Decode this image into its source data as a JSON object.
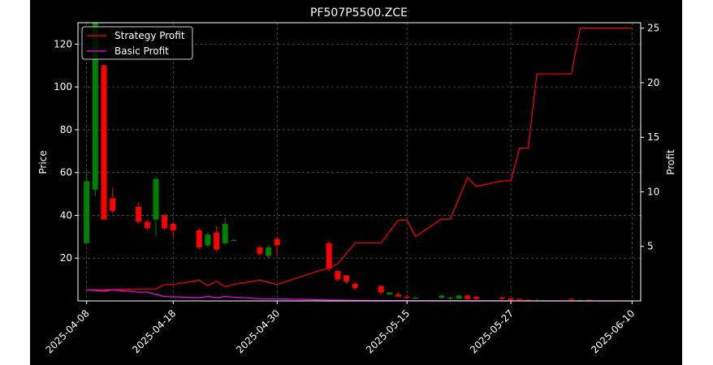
{
  "chart_data": {
    "type": "candlestick",
    "title": "PF507P5500.ZCE",
    "ylabel_left": "Price",
    "ylabel_right": "Profit",
    "xlim": [
      "2025-04-07",
      "2025-06-11"
    ],
    "ylim_left": [
      0,
      130
    ],
    "ylim_right": [
      0,
      25.5
    ],
    "yticks_left": [
      20,
      40,
      60,
      80,
      100,
      120
    ],
    "yticks_right": [
      5,
      10,
      15,
      20,
      25
    ],
    "xticks": [
      "2025-04-08",
      "2025-04-18",
      "2025-04-30",
      "2025-05-15",
      "2025-05-27",
      "2025-06-10"
    ],
    "grid": true,
    "legend_position": "top-left",
    "colors": {
      "background": "#000000",
      "up": "#008000",
      "down": "#ff0000",
      "strategy": "#ff0000",
      "basic": "#ff00ff",
      "grid": "#555555"
    },
    "candles": [
      {
        "date": "2025-04-08",
        "open": 27,
        "close": 56,
        "high": 61,
        "low": 27
      },
      {
        "date": "2025-04-09",
        "open": 52,
        "close": 130,
        "high": 130,
        "low": 49
      },
      {
        "date": "2025-04-10",
        "open": 110,
        "close": 38,
        "high": 110,
        "low": 38
      },
      {
        "date": "2025-04-11",
        "open": 48,
        "close": 42,
        "high": 53,
        "low": 41
      },
      {
        "date": "2025-04-14",
        "open": 44,
        "close": 37,
        "high": 46,
        "low": 36
      },
      {
        "date": "2025-04-15",
        "open": 37,
        "close": 34,
        "high": 38,
        "low": 33
      },
      {
        "date": "2025-04-16",
        "open": 38,
        "close": 57,
        "high": 58,
        "low": 30
      },
      {
        "date": "2025-04-17",
        "open": 40,
        "close": 34,
        "high": 41,
        "low": 33
      },
      {
        "date": "2025-04-18",
        "open": 36,
        "close": 33,
        "high": 37,
        "low": 30
      },
      {
        "date": "2025-04-21",
        "open": 33,
        "close": 25,
        "high": 34,
        "low": 24
      },
      {
        "date": "2025-04-22",
        "open": 26,
        "close": 31,
        "high": 32,
        "low": 25
      },
      {
        "date": "2025-04-23",
        "open": 32,
        "close": 24,
        "high": 35,
        "low": 23
      },
      {
        "date": "2025-04-24",
        "open": 27,
        "close": 36,
        "high": 39,
        "low": 26
      },
      {
        "date": "2025-04-25",
        "open": 28.5,
        "close": 28.5,
        "high": 29,
        "low": 28
      },
      {
        "date": "2025-04-28",
        "open": 25,
        "close": 22,
        "high": 26,
        "low": 21
      },
      {
        "date": "2025-04-29",
        "open": 21,
        "close": 25,
        "high": 26,
        "low": 20
      },
      {
        "date": "2025-04-30",
        "open": 29,
        "close": 26,
        "high": 30,
        "low": 21
      },
      {
        "date": "2025-05-06",
        "open": 27,
        "close": 15,
        "high": 28,
        "low": 14
      },
      {
        "date": "2025-05-07",
        "open": 14,
        "close": 10,
        "high": 14,
        "low": 9
      },
      {
        "date": "2025-05-08",
        "open": 12,
        "close": 9,
        "high": 12,
        "low": 8
      },
      {
        "date": "2025-05-09",
        "open": 8,
        "close": 6,
        "high": 9,
        "low": 5
      },
      {
        "date": "2025-05-12",
        "open": 7,
        "close": 4,
        "high": 7,
        "low": 3
      },
      {
        "date": "2025-05-13",
        "open": 3,
        "close": 4,
        "high": 4,
        "low": 3
      },
      {
        "date": "2025-05-14",
        "open": 3,
        "close": 2,
        "high": 4,
        "low": 2
      },
      {
        "date": "2025-05-15",
        "open": 2,
        "close": 1.5,
        "high": 3,
        "low": 1
      },
      {
        "date": "2025-05-16",
        "open": 1,
        "close": 1.5,
        "high": 2,
        "low": 1
      },
      {
        "date": "2025-05-19",
        "open": 1.5,
        "close": 2.5,
        "high": 3,
        "low": 1
      },
      {
        "date": "2025-05-20",
        "open": 1,
        "close": 1.5,
        "high": 2,
        "low": 0.5
      },
      {
        "date": "2025-05-21",
        "open": 1,
        "close": 2.5,
        "high": 3,
        "low": 1
      },
      {
        "date": "2025-05-22",
        "open": 2.5,
        "close": 1,
        "high": 3,
        "low": 0.5
      },
      {
        "date": "2025-05-23",
        "open": 2,
        "close": 1,
        "high": 2,
        "low": 0.5
      },
      {
        "date": "2025-05-26",
        "open": 1.5,
        "close": 1,
        "high": 2,
        "low": 0.5
      },
      {
        "date": "2025-05-27",
        "open": 1.2,
        "close": 0.5,
        "high": 1.5,
        "low": 0.3
      },
      {
        "date": "2025-05-28",
        "open": 1,
        "close": 0.5,
        "high": 1,
        "low": 0.2
      },
      {
        "date": "2025-05-29",
        "open": 0.5,
        "close": 0.3,
        "high": 0.6,
        "low": 0.2
      },
      {
        "date": "2025-05-30",
        "open": 0.3,
        "close": 0.3,
        "high": 1,
        "low": 0.1
      },
      {
        "date": "2025-06-03",
        "open": 1,
        "close": 0.6,
        "high": 1.2,
        "low": 0.3
      },
      {
        "date": "2025-06-04",
        "open": 0.4,
        "close": 0.4,
        "high": 0.5,
        "low": 0.3
      },
      {
        "date": "2025-06-05",
        "open": 0.5,
        "close": 0.3,
        "high": 0.5,
        "low": 0.2
      }
    ],
    "series": [
      {
        "name": "Strategy Profit",
        "color": "#ff0000",
        "points": [
          [
            "2025-04-08",
            1.0
          ],
          [
            "2025-04-10",
            1.0
          ],
          [
            "2025-04-14",
            1.1
          ],
          [
            "2025-04-16",
            1.1
          ],
          [
            "2025-04-17",
            1.5
          ],
          [
            "2025-04-18",
            1.5
          ],
          [
            "2025-04-21",
            1.9
          ],
          [
            "2025-04-22",
            1.4
          ],
          [
            "2025-04-23",
            1.8
          ],
          [
            "2025-04-24",
            1.3
          ],
          [
            "2025-04-25",
            1.5
          ],
          [
            "2025-04-28",
            1.9
          ],
          [
            "2025-04-30",
            1.5
          ],
          [
            "2025-05-05",
            2.8
          ],
          [
            "2025-05-06",
            3.0
          ],
          [
            "2025-05-07",
            3.4
          ],
          [
            "2025-05-09",
            5.3
          ],
          [
            "2025-05-12",
            5.3
          ],
          [
            "2025-05-14",
            7.4
          ],
          [
            "2025-05-15",
            7.4
          ],
          [
            "2025-05-16",
            5.9
          ],
          [
            "2025-05-19",
            7.5
          ],
          [
            "2025-05-20",
            7.5
          ],
          [
            "2025-05-22",
            11.3
          ],
          [
            "2025-05-23",
            10.5
          ],
          [
            "2025-05-26",
            11.0
          ],
          [
            "2025-05-27",
            11.0
          ],
          [
            "2025-05-28",
            14.0
          ],
          [
            "2025-05-29",
            14.0
          ],
          [
            "2025-05-30",
            20.8
          ],
          [
            "2025-06-03",
            20.8
          ],
          [
            "2025-06-04",
            25.0
          ],
          [
            "2025-06-10",
            25.0
          ]
        ]
      },
      {
        "name": "Basic Profit",
        "color": "#ff00ff",
        "points": [
          [
            "2025-04-08",
            1.0
          ],
          [
            "2025-04-10",
            0.9
          ],
          [
            "2025-04-11",
            1.0
          ],
          [
            "2025-04-14",
            0.8
          ],
          [
            "2025-04-15",
            0.8
          ],
          [
            "2025-04-17",
            0.4
          ],
          [
            "2025-04-21",
            0.3
          ],
          [
            "2025-04-22",
            0.4
          ],
          [
            "2025-04-23",
            0.3
          ],
          [
            "2025-04-24",
            0.4
          ],
          [
            "2025-04-28",
            0.2
          ],
          [
            "2025-04-30",
            0.2
          ],
          [
            "2025-05-05",
            0.1
          ],
          [
            "2025-05-09",
            0.05
          ],
          [
            "2025-05-15",
            0.02
          ],
          [
            "2025-05-27",
            0.01
          ],
          [
            "2025-06-10",
            0.0
          ]
        ]
      }
    ]
  }
}
